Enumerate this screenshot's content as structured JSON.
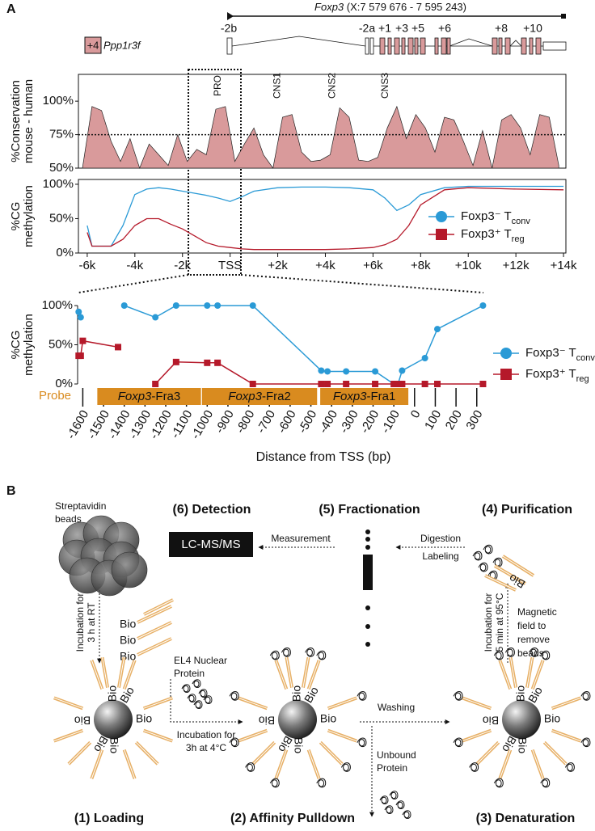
{
  "panel_labels": [
    "A",
    "B"
  ],
  "gene_track": {
    "title_gene": "Foxp3",
    "title_coords": "(X:7 579 676 - 7 595 243)",
    "neighbor_exon": "+4",
    "neighbor_gene": "Ppp1r3f",
    "exons": [
      "-2b",
      "-2a",
      "+1",
      "+3",
      "+5",
      "+6",
      "+8",
      "+10"
    ]
  },
  "chart_data": [
    {
      "type": "area",
      "ylabel": [
        "%Conservation",
        "mouse - human"
      ],
      "x": [
        -6200,
        -5800,
        -5400,
        -5000,
        -4600,
        -4200,
        -3800,
        -3400,
        -3000,
        -2600,
        -2200,
        -1800,
        -1400,
        -1000,
        -600,
        -200,
        200,
        600,
        1000,
        1400,
        1800,
        2200,
        2600,
        3000,
        3400,
        3800,
        4200,
        4600,
        5000,
        5400,
        5800,
        6200,
        6600,
        7000,
        7400,
        7800,
        8200,
        8600,
        9000,
        9400,
        9800,
        10200,
        10600,
        11000,
        11400,
        11800,
        12200,
        12600,
        13000,
        13400,
        13800
      ],
      "series": [
        {
          "color": "#d99a9b",
          "values": [
            50,
            96,
            93,
            70,
            55,
            72,
            50,
            68,
            60,
            52,
            75,
            55,
            64,
            60,
            94,
            96,
            55,
            68,
            80,
            60,
            50,
            88,
            90,
            62,
            55,
            56,
            60,
            95,
            88,
            56,
            55,
            58,
            80,
            96,
            72,
            90,
            80,
            62,
            88,
            86,
            70,
            52,
            78,
            50,
            86,
            90,
            80,
            60,
            90,
            88,
            52
          ]
        }
      ],
      "xlim": [
        -6370,
        14100
      ],
      "ylim": [
        50,
        120
      ],
      "yticks": [
        {
          "value": 50,
          "label": "50%"
        },
        {
          "value": 75,
          "label": "75%"
        },
        {
          "value": 100,
          "label": "100%"
        }
      ],
      "hline": 75,
      "annotations": [
        {
          "text": "PRO",
          "x": -500
        },
        {
          "text": "CNS1",
          "x": 2000
        },
        {
          "text": "CNS2",
          "x": 4300
        },
        {
          "text": "CNS3",
          "x": 6530
        }
      ]
    },
    {
      "type": "line",
      "ylabel": [
        "%CG",
        "methylation"
      ],
      "x": [
        -6000,
        -5800,
        -5000,
        -4500,
        -4000,
        -3500,
        -3000,
        -2500,
        -2000,
        -1500,
        -1000,
        -500,
        0,
        500,
        1000,
        2000,
        3000,
        4000,
        5000,
        6000,
        6500,
        7000,
        7500,
        8000,
        9000,
        10000,
        12000,
        14000
      ],
      "series": [
        {
          "name": "Foxp3⁻ T",
          "name_sub": "conv",
          "color": "#2a9ad6",
          "values": [
            40,
            10,
            10,
            40,
            85,
            93,
            95,
            93,
            90,
            87,
            84,
            80,
            75,
            82,
            90,
            95,
            96,
            96,
            95,
            92,
            80,
            62,
            70,
            85,
            95,
            97,
            97,
            97
          ]
        },
        {
          "name": "Foxp3⁺ T",
          "name_sub": "reg",
          "color": "#b5192a",
          "values": [
            30,
            10,
            10,
            20,
            40,
            50,
            50,
            42,
            35,
            25,
            15,
            10,
            8,
            6,
            5,
            5,
            5,
            5,
            6,
            8,
            12,
            20,
            40,
            70,
            92,
            95,
            93,
            92
          ]
        }
      ],
      "xlim": [
        -6370,
        14100
      ],
      "ylim": [
        0,
        107
      ],
      "xticks": [
        {
          "value": -6000,
          "label": "-6k"
        },
        {
          "value": -4000,
          "label": "-4k"
        },
        {
          "value": -2000,
          "label": "-2k"
        },
        {
          "value": 0,
          "label": "TSS"
        },
        {
          "value": 2000,
          "label": "+2k"
        },
        {
          "value": 4000,
          "label": "+4k"
        },
        {
          "value": 6000,
          "label": "+6k"
        },
        {
          "value": 8000,
          "label": "+8k"
        },
        {
          "value": 10000,
          "label": "+10k"
        },
        {
          "value": 12000,
          "label": "+12k"
        },
        {
          "value": 14000,
          "label": "+14k"
        }
      ],
      "yticks": [
        {
          "value": 0,
          "label": "0%"
        },
        {
          "value": 50,
          "label": "50%"
        },
        {
          "value": 100,
          "label": "100%"
        }
      ]
    },
    {
      "type": "line",
      "ylabel": [
        "%CG",
        "methylation"
      ],
      "xlabel": "Distance from TSS (bp)",
      "probe_label": "Probe",
      "probes": [
        {
          "label": "Foxp3-Fra3",
          "start": -1530,
          "end": -1030
        },
        {
          "label": "Foxp3-Fra2",
          "start": -1025,
          "end": -470
        },
        {
          "label": "Foxp3-Fra1",
          "start": -455,
          "end": -30
        }
      ],
      "x": [
        -1620,
        -1610,
        -1600,
        -1430,
        -1400,
        -1250,
        -1150,
        -1000,
        -950,
        -780,
        -450,
        -420,
        -330,
        -190,
        -100,
        -80,
        -60,
        50,
        110,
        330
      ],
      "series": [
        {
          "name": "Foxp3⁻ T",
          "name_sub": "conv",
          "color": "#2a9ad6",
          "marker": "circle",
          "values": [
            92,
            85,
            null,
            null,
            100,
            85,
            100,
            100,
            100,
            100,
            17,
            16,
            16,
            16,
            0,
            0,
            17,
            33,
            70,
            100
          ]
        },
        {
          "name": "Foxp3⁺ T",
          "name_sub": "reg",
          "color": "#b5192a",
          "marker": "square",
          "values": [
            36,
            36,
            55,
            47,
            null,
            0,
            28,
            27,
            27,
            0,
            0,
            0,
            0,
            0,
            0,
            0,
            0,
            0,
            0,
            0
          ]
        }
      ],
      "xlim": [
        -1625,
        340
      ],
      "ylim": [
        0,
        100
      ],
      "xticks": [
        -1600,
        -1500,
        -1400,
        -1300,
        -1200,
        -1100,
        -1000,
        -900,
        -800,
        -700,
        -600,
        -500,
        -400,
        -300,
        -200,
        -100,
        0,
        100,
        200,
        300
      ],
      "yticks": [
        {
          "value": 0,
          "label": "0%"
        },
        {
          "value": 50,
          "label": "50%"
        },
        {
          "value": 100,
          "label": "100%"
        }
      ]
    }
  ],
  "diagram": {
    "streptavidin": [
      "Streptavidin",
      "beads"
    ],
    "step6": "(6) Detection",
    "step5": "(5) Fractionation",
    "step4": "(4) Purification",
    "lcms": "LC-MS/MS",
    "measurement": "Measurement",
    "digestion": "Digestion",
    "labeling": "Labeling",
    "incubation_rt": [
      "Incubation for",
      "3 h at RT"
    ],
    "bio": "Bio",
    "el4": [
      "EL4 Nuclear",
      "Protein"
    ],
    "incubation_4c": [
      "Incubation for",
      "3h at 4°C"
    ],
    "washing": "Washing",
    "unbound": [
      "Unbound",
      "Protein"
    ],
    "incubation_95": [
      "Incubation for",
      "5 min at 95°C"
    ],
    "magnetic": [
      "Magnetic",
      "field to",
      "remove",
      "beads"
    ],
    "step1": "(1) Loading",
    "step2": "(2) Affinity Pulldown",
    "step3": "(3) Denaturation"
  }
}
